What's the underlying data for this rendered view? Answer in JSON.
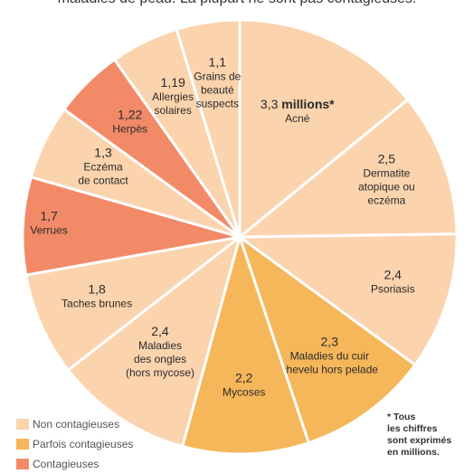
{
  "header_text": "maladies de peau. La plupart ne sont pas contagieuses.",
  "colors": {
    "non_contagious": "#fbd3ad",
    "sometimes_contagious": "#f6b65a",
    "contagious": "#f28a68"
  },
  "chart_data": {
    "type": "pie",
    "unit": "millions",
    "slices": [
      {
        "value": 3.3,
        "value_label": "3,3",
        "suffix": "millions*",
        "label_lines": [
          "Acné"
        ],
        "category": "non_contagious"
      },
      {
        "value": 2.5,
        "value_label": "2,5",
        "suffix": "",
        "label_lines": [
          "Dermatite",
          "atopique ou",
          "eczéma"
        ],
        "category": "non_contagious"
      },
      {
        "value": 2.4,
        "value_label": "2,4",
        "suffix": "",
        "label_lines": [
          "Psoriasis"
        ],
        "category": "non_contagious"
      },
      {
        "value": 2.3,
        "value_label": "2,3",
        "suffix": "",
        "label_lines": [
          "Maladies du cuir",
          "chevelu hors pelade"
        ],
        "category": "sometimes_contagious"
      },
      {
        "value": 2.2,
        "value_label": "2,2",
        "suffix": "",
        "label_lines": [
          "Mycoses"
        ],
        "category": "sometimes_contagious"
      },
      {
        "value": 2.4,
        "value_label": "2,4",
        "suffix": "",
        "label_lines": [
          "Maladies",
          "des ongles",
          "(hors mycose)"
        ],
        "category": "non_contagious"
      },
      {
        "value": 1.8,
        "value_label": "1,8",
        "suffix": "",
        "label_lines": [
          "Taches brunes"
        ],
        "category": "non_contagious"
      },
      {
        "value": 1.7,
        "value_label": "1,7",
        "suffix": "",
        "label_lines": [
          "Verrues"
        ],
        "category": "contagious"
      },
      {
        "value": 1.3,
        "value_label": "1,3",
        "suffix": "",
        "label_lines": [
          "Eczéma",
          "de contact"
        ],
        "category": "non_contagious"
      },
      {
        "value": 1.22,
        "value_label": "1,22",
        "suffix": "",
        "label_lines": [
          "Herpès"
        ],
        "category": "contagious"
      },
      {
        "value": 1.19,
        "value_label": "1,19",
        "suffix": "",
        "label_lines": [
          "Allergies",
          "solaires"
        ],
        "category": "non_contagious"
      },
      {
        "value": 1.1,
        "value_label": "1,1",
        "suffix": "",
        "label_lines": [
          "Grains de",
          "beauté",
          "suspects"
        ],
        "category": "non_contagious"
      }
    ],
    "legend": [
      {
        "label": "Non contagieuses",
        "category": "non_contagious"
      },
      {
        "label": "Parfois contagieuses",
        "category": "sometimes_contagious"
      },
      {
        "label": "Contagieuses",
        "category": "contagious"
      }
    ],
    "legend_position": "bottom-left",
    "footnote": [
      "* Tous",
      "les chiffres",
      "sont exprimés",
      "en millions."
    ]
  }
}
